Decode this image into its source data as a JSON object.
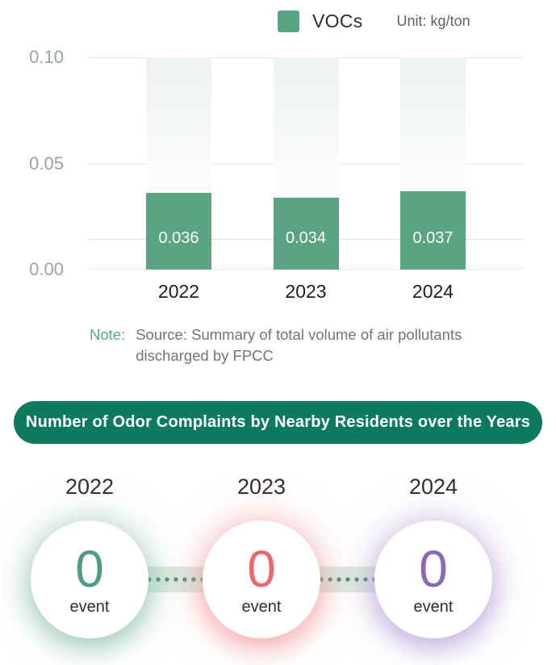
{
  "chart_data": {
    "type": "bar",
    "title": "",
    "categories": [
      "2022",
      "2023",
      "2024"
    ],
    "series": [
      {
        "name": "VOCs",
        "values": [
          0.036,
          0.034,
          0.037
        ]
      }
    ],
    "value_labels": [
      "0.036",
      "0.034",
      "0.037"
    ],
    "unit": "kg/ton",
    "ylim": [
      0,
      0.1
    ],
    "yticks_top_to_bottom": [
      "0.10",
      "0.05",
      "0.00"
    ],
    "reference_line_value": 0.014,
    "grid": true,
    "legend_position": "top",
    "bar_color": "#5aa483"
  },
  "legend": {
    "series_label": "VOCs",
    "unit_label": "Unit: kg/ton"
  },
  "note": {
    "label": "Note:",
    "text": "Source: Summary of total volume of air pollutants discharged by FPCC",
    "label_color": "#58ab8b"
  },
  "banner": {
    "title": "Number of Odor Complaints by Nearby Residents over the Years",
    "bg_color": "#0b7a5e",
    "text_color": "#ffffff"
  },
  "complaints": {
    "items": [
      {
        "year": "2022",
        "value": "0",
        "unit": "event",
        "value_color": "#4c9d7d",
        "glow_color": "rgba(130,185,158,0.55)"
      },
      {
        "year": "2023",
        "value": "0",
        "unit": "event",
        "value_color": "#e9696d",
        "glow_color": "rgba(240,145,148,0.55)"
      },
      {
        "year": "2024",
        "value": "0",
        "unit": "event",
        "value_color": "#8a67b7",
        "glow_color": "rgba(175,148,214,0.55)"
      }
    ],
    "connector_color": "#dde9e2",
    "connector_dot_color": "#4d9372"
  }
}
